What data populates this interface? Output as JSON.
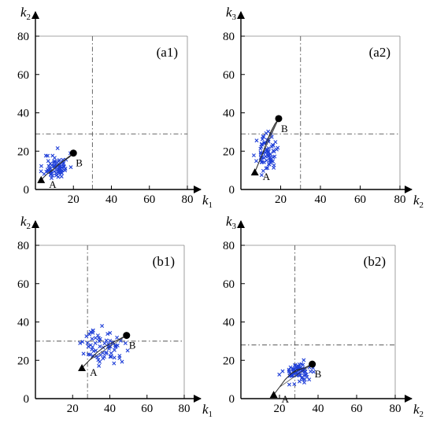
{
  "chart_data": [
    {
      "type": "scatter",
      "panel_label": "(a1)",
      "xlabel": "k",
      "xlabel_sub": "1",
      "ylabel": "k",
      "ylabel_sub": "2",
      "xlim": [
        0,
        80
      ],
      "ylim": [
        0,
        80
      ],
      "xticks": [
        20,
        40,
        60,
        80
      ],
      "yticks": [
        0,
        20,
        40,
        60,
        80
      ],
      "threshold_x": 30,
      "threshold_y": 29,
      "start": {
        "label": "A",
        "x": 3,
        "y": 5
      },
      "end": {
        "label": "B",
        "x": 20,
        "y": 19
      },
      "trajectory": [
        [
          3,
          5
        ],
        [
          6,
          8
        ],
        [
          9,
          10
        ],
        [
          12,
          13
        ],
        [
          15,
          15
        ],
        [
          18,
          17
        ],
        [
          20,
          19
        ]
      ],
      "cloud": {
        "cx": 11,
        "cy": 12,
        "sx": 3.2,
        "sy": 3.5,
        "n": 70,
        "seed": 11
      }
    },
    {
      "type": "scatter",
      "panel_label": "(a2)",
      "xlabel": "k",
      "xlabel_sub": "2",
      "ylabel": "k",
      "ylabel_sub": "3",
      "xlim": [
        0,
        80
      ],
      "ylim": [
        0,
        80
      ],
      "xticks": [
        20,
        40,
        60,
        80
      ],
      "yticks": [
        0,
        20,
        40,
        60,
        80
      ],
      "threshold_x": 30,
      "threshold_y": 29,
      "start": {
        "label": "A",
        "x": 7,
        "y": 9
      },
      "end": {
        "label": "B",
        "x": 19,
        "y": 37
      },
      "trajectory": [
        [
          7,
          9
        ],
        [
          9,
          14
        ],
        [
          11,
          19
        ],
        [
          13,
          25
        ],
        [
          15,
          30
        ],
        [
          17,
          34
        ],
        [
          19,
          37
        ]
      ],
      "cloud": {
        "cx": 13,
        "cy": 19,
        "sx": 2.4,
        "sy": 4.5,
        "n": 70,
        "seed": 23
      }
    },
    {
      "type": "scatter",
      "panel_label": "(b1)",
      "xlabel": "k",
      "xlabel_sub": "1",
      "ylabel": "k",
      "ylabel_sub": "2",
      "xlim": [
        0,
        80
      ],
      "ylim": [
        0,
        80
      ],
      "xticks": [
        20,
        40,
        60,
        80
      ],
      "yticks": [
        0,
        20,
        40,
        60,
        80
      ],
      "threshold_x": 28,
      "threshold_y": 30,
      "start": {
        "label": "A",
        "x": 25,
        "y": 16
      },
      "end": {
        "label": "B",
        "x": 49,
        "y": 33
      },
      "trajectory": [
        [
          25,
          16
        ],
        [
          29,
          20
        ],
        [
          33,
          24
        ],
        [
          37,
          27
        ],
        [
          41,
          29
        ],
        [
          45,
          31
        ],
        [
          49,
          33
        ]
      ],
      "cloud": {
        "cx": 37,
        "cy": 27,
        "sx": 5.5,
        "sy": 4.5,
        "n": 70,
        "seed": 37
      }
    },
    {
      "type": "scatter",
      "panel_label": "(b2)",
      "xlabel": "k",
      "xlabel_sub": "2",
      "ylabel": "k",
      "ylabel_sub": "3",
      "xlim": [
        0,
        80
      ],
      "ylim": [
        0,
        80
      ],
      "xticks": [
        20,
        40,
        60,
        80
      ],
      "yticks": [
        0,
        20,
        40,
        60,
        80
      ],
      "threshold_x": 28,
      "threshold_y": 28,
      "start": {
        "label": "A",
        "x": 17,
        "y": 2
      },
      "end": {
        "label": "B",
        "x": 37,
        "y": 18
      },
      "trajectory": [
        [
          17,
          2
        ],
        [
          20,
          6
        ],
        [
          23,
          10
        ],
        [
          26,
          13
        ],
        [
          29,
          15
        ],
        [
          33,
          16
        ],
        [
          37,
          18
        ]
      ],
      "cloud": {
        "cx": 30,
        "cy": 14,
        "sx": 3.8,
        "sy": 2.8,
        "n": 70,
        "seed": 53
      }
    }
  ],
  "colors": {
    "cloud": "#1f3fd8",
    "axis": "#000000",
    "frame": "#888888",
    "threshold": "#555555"
  }
}
